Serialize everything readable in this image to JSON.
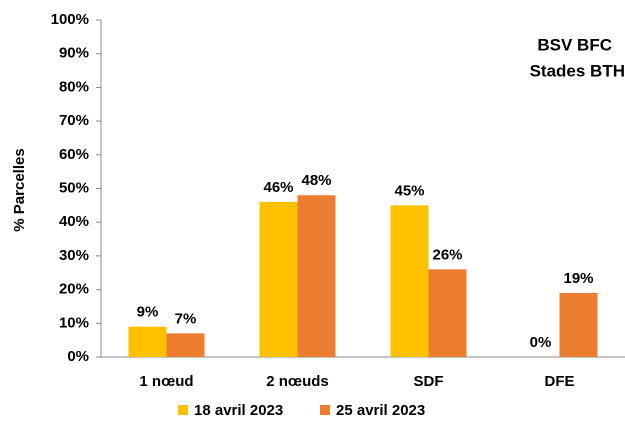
{
  "chart_data": {
    "type": "bar",
    "annotations": [
      "BSV BFC",
      "Stades BTH"
    ],
    "y_label": "% Parcelles",
    "categories": [
      "1 nœud",
      "2 nœuds",
      "SDF",
      "DFE"
    ],
    "series": [
      {
        "name": "18 avril 2023",
        "color": "#FFC000",
        "values": [
          9,
          46,
          45,
          0
        ],
        "value_labels": [
          "9%",
          "46%",
          "45%",
          "0%"
        ]
      },
      {
        "name": "25 avril 2023",
        "color": "#ED7D31",
        "values": [
          7,
          48,
          26,
          19
        ],
        "value_labels": [
          "7%",
          "48%",
          "26%",
          "19%"
        ]
      }
    ],
    "ylim": [
      0,
      100
    ],
    "yticks": [
      {
        "value": 0,
        "label": "0%"
      },
      {
        "value": 10,
        "label": "10%"
      },
      {
        "value": 20,
        "label": "20%"
      },
      {
        "value": 30,
        "label": "30%"
      },
      {
        "value": 40,
        "label": "40%"
      },
      {
        "value": 50,
        "label": "50%"
      },
      {
        "value": 60,
        "label": "60%"
      },
      {
        "value": 70,
        "label": "70%"
      },
      {
        "value": 80,
        "label": "80%"
      },
      {
        "value": 90,
        "label": "90%"
      },
      {
        "value": 100,
        "label": "100%"
      }
    ],
    "grid": false,
    "legend": "bottom"
  }
}
